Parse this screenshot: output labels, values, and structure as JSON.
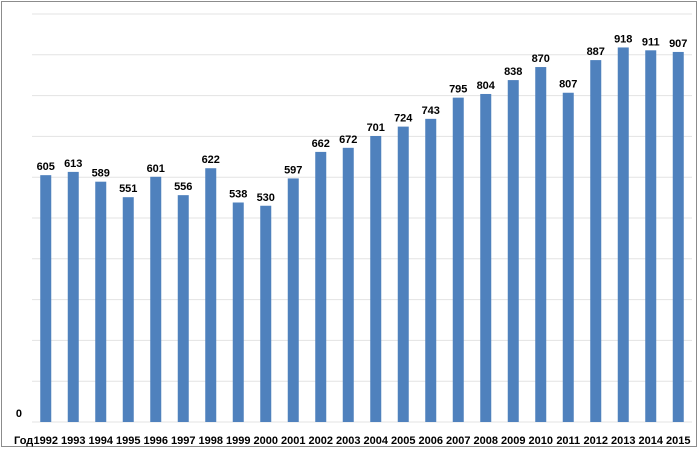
{
  "chart_data": {
    "type": "bar",
    "categories": [
      "1992",
      "1993",
      "1994",
      "1995",
      "1996",
      "1997",
      "1998",
      "1999",
      "2000",
      "2001",
      "2002",
      "2003",
      "2004",
      "2005",
      "2006",
      "2007",
      "2008",
      "2009",
      "2010",
      "2011",
      "2012",
      "2013",
      "2014",
      "2015"
    ],
    "values": [
      605,
      613,
      589,
      551,
      601,
      556,
      622,
      538,
      530,
      597,
      662,
      672,
      701,
      724,
      743,
      795,
      804,
      838,
      870,
      807,
      887,
      918,
      911,
      907
    ],
    "title": "",
    "xlabel": "Год",
    "ylabel": "",
    "ylim": [
      0,
      1000
    ],
    "yticks_shown": [
      "0"
    ],
    "grid": true,
    "legend": "none",
    "data_labels": true,
    "bar_color": "#4f81bd"
  }
}
